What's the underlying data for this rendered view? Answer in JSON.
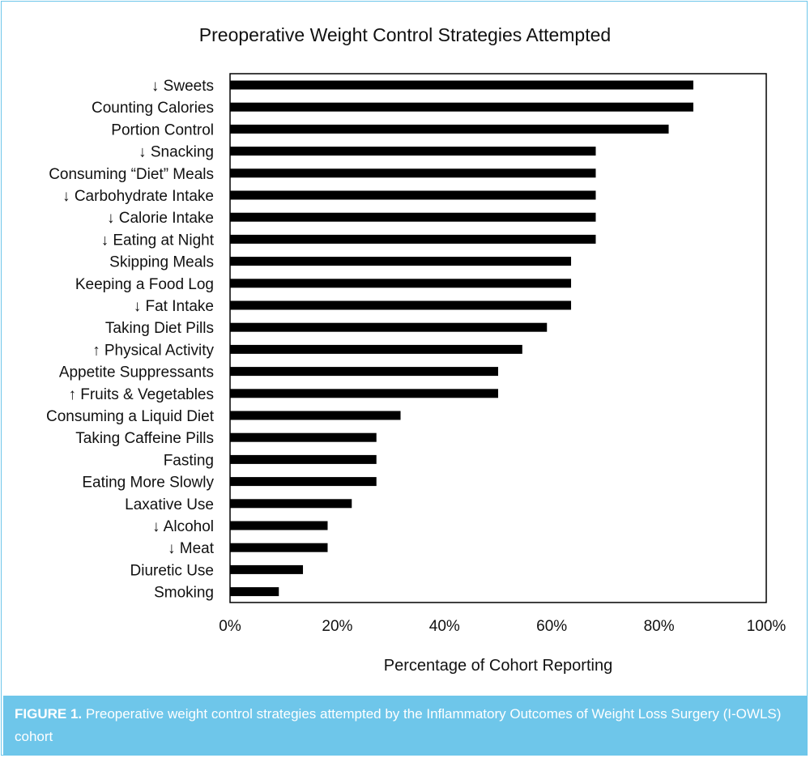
{
  "figure": {
    "caption_label": "FIGURE 1.",
    "caption_text": "Preoperative weight control strategies attempted by the Inflammatory Outcomes of Weight Loss Surgery (I-OWLS) cohort"
  },
  "chart_data": {
    "type": "bar",
    "orientation": "horizontal",
    "title": "Preoperative Weight Control Strategies Attempted",
    "xlabel": "Percentage of Cohort Reporting",
    "ylabel": "",
    "xlim": [
      0,
      100
    ],
    "xticks": [
      "0%",
      "20%",
      "40%",
      "60%",
      "80%",
      "100%"
    ],
    "grid": false,
    "legend": "none",
    "bar_color": "#000000",
    "categories": [
      "↓ Sweets",
      "Counting Calories",
      "Portion Control",
      "↓ Snacking",
      "Consuming “Diet” Meals",
      "↓ Carbohydrate Intake",
      "↓ Calorie Intake",
      "↓ Eating at Night",
      "Skipping Meals",
      "Keeping a Food Log",
      "↓ Fat Intake",
      "Taking Diet Pills",
      "↑ Physical Activity",
      "Appetite Suppressants",
      "↑ Fruits & Vegetables",
      "Consuming a Liquid Diet",
      "Taking Caffeine Pills",
      "Fasting",
      "Eating More Slowly",
      "Laxative Use",
      "↓ Alcohol",
      "↓ Meat",
      "Diuretic Use",
      "Smoking"
    ],
    "values": [
      86.4,
      86.4,
      81.8,
      68.2,
      68.2,
      68.2,
      68.2,
      68.2,
      63.6,
      63.6,
      63.6,
      59.1,
      54.5,
      50.0,
      50.0,
      31.8,
      27.3,
      27.3,
      27.3,
      22.7,
      18.2,
      18.2,
      13.6,
      9.1
    ]
  }
}
